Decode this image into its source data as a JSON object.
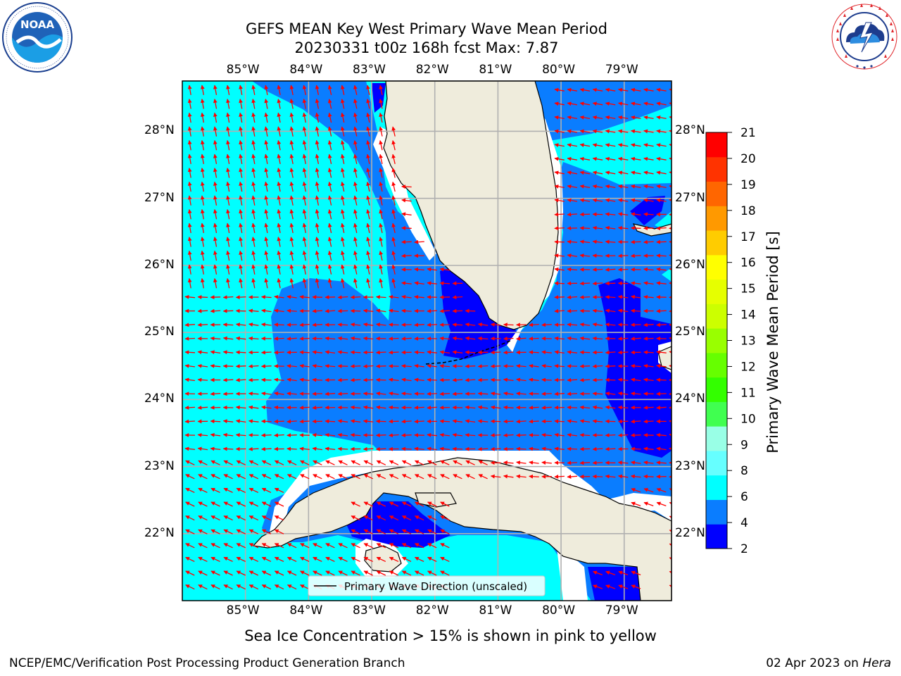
{
  "header": {
    "title_line1": "GEFS MEAN Key West Primary Wave Mean Period",
    "title_line2": "20230331 t00z 168h fcst   Max: 7.87"
  },
  "logos": {
    "left": {
      "icon": "noaa-logo",
      "text": "NOAA",
      "ring_text": "NATIONAL OCEANIC AND ATMOSPHERIC ADMINISTRATION · U.S. DEPARTMENT OF COMMERCE"
    },
    "right": {
      "icon": "nws-logo",
      "ring_text": "NATIONAL WEATHER SERVICE"
    }
  },
  "map": {
    "lon_labels": [
      "85°W",
      "84°W",
      "83°W",
      "82°W",
      "81°W",
      "80°W",
      "79°W"
    ],
    "lat_labels": [
      "28°N",
      "27°N",
      "26°N",
      "25°N",
      "24°N",
      "23°N",
      "22°N"
    ],
    "lon_range": [
      -86.0,
      -78.25
    ],
    "lat_range": [
      21.0,
      28.75
    ],
    "gridlines": true,
    "legend": "Primary Wave Direction (unscaled)",
    "legend_position": "bottom-center",
    "arrow_color": "#ff0000",
    "land_color": "#efecdc",
    "ocean_palette": {
      "2-4": "#0000ff",
      "4-6": "#0a7dff",
      "6-8": "#00ffff"
    }
  },
  "colorbar": {
    "label": "Primary Wave Mean Period [s]",
    "ticks": [
      "2",
      "4",
      "6",
      "8",
      "9",
      "10",
      "11",
      "12",
      "13",
      "14",
      "15",
      "16",
      "17",
      "18",
      "19",
      "20",
      "21"
    ],
    "colors": [
      "#0000ff",
      "#0a7dff",
      "#00ffff",
      "#66ffff",
      "#99ffe6",
      "#40ff50",
      "#33ff00",
      "#66ff00",
      "#99ff00",
      "#ccff00",
      "#e6ff00",
      "#ffff00",
      "#ffcc00",
      "#ff9900",
      "#ff6600",
      "#ff3300",
      "#ff0000"
    ]
  },
  "note": "Sea Ice Concentration > 15% is shown in pink to yellow",
  "footer": {
    "left": "NCEP/EMC/Verification Post Processing Product Generation Branch",
    "date": "02 Apr 2023 on ",
    "machine": "Hera"
  }
}
